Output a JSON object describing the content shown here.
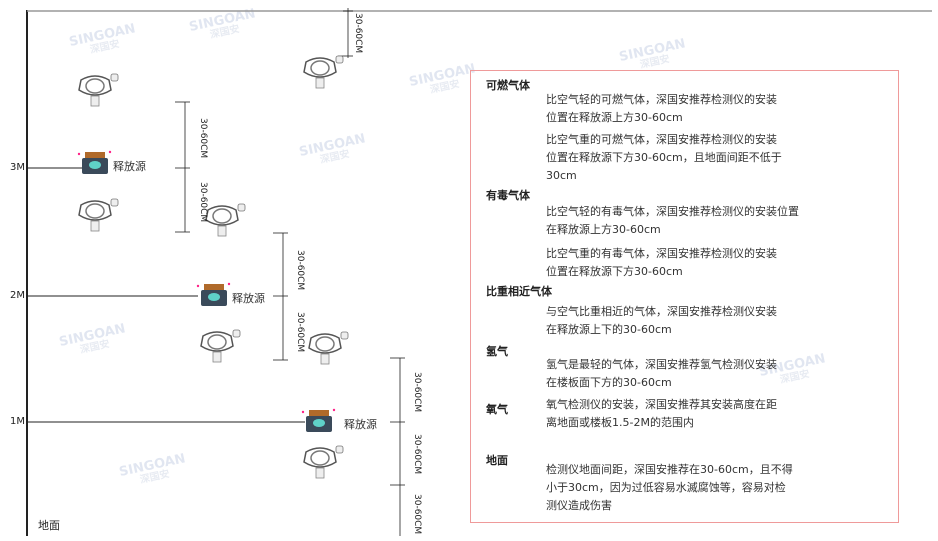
{
  "levels": {
    "l3": "3M",
    "l2": "2M",
    "l1": "1M",
    "ground": "地面"
  },
  "source_label": "释放源",
  "dimension_label": "30-60CM",
  "watermark": {
    "brand": "SINGOAN",
    "cn": "深国安"
  },
  "panel": {
    "combustible": {
      "title": "可燃气体",
      "light": "比空气轻的可燃气体，深国安推荐检测仪的安装\n位置在释放源上方30-60cm",
      "heavy": "比空气重的可燃气体，深国安推荐检测仪的安装\n位置在释放源下方30-60cm，且地面间距不低于\n30cm"
    },
    "toxic": {
      "title": "有毒气体",
      "light": "比空气轻的有毒气体，深国安推荐检测仪的安装位置\n在释放源上方30-60cm",
      "heavy": "比空气重的有毒气体，深国安推荐检测仪的安装\n位置在释放源下方30-60cm"
    },
    "similar": {
      "title": "比重相近气体",
      "text": "与空气比重相近的气体，深国安推荐检测仪安装\n在释放源上下的30-60cm"
    },
    "hydrogen": {
      "title": "氢气",
      "text": "氢气是最轻的气体，深国安推荐氢气检测仪安装\n在楼板面下方的30-60cm"
    },
    "oxygen": {
      "title": "氧气",
      "text": "氧气检测仪的安装，深国安推荐其安装高度在距\n离地面或楼板1.5-2M的范围内"
    },
    "ground": {
      "title": "地面",
      "text": "检测仪地面间距，深国安推荐在30-60cm，且不得\n小于30cm，因为过低容易水滅腐蚀等，容易对检\n测仪造成伤害"
    }
  }
}
